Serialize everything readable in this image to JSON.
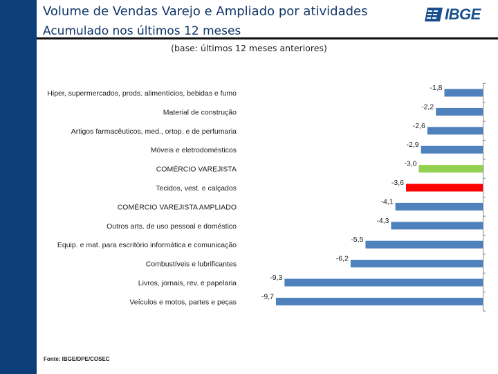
{
  "header": {
    "title": "Volume de Vendas Varejo e Ampliado por atividades",
    "subtitle": "Acumulado nos últimos 12 meses",
    "logo_text": "IBGE"
  },
  "chart_data": {
    "type": "bar",
    "orientation": "horizontal",
    "title": "(base: últimos 12 meses anteriores)",
    "categories": [
      "Hiper, supermercados, prods.  alimentícios, bebidas e fumo",
      "Material de construção",
      "Artigos farmacêuticos, med., ortop. e de perfumaria",
      "Móveis e eletrodomésticos",
      "COMÉRCIO VAREJISTA",
      "Tecidos, vest. e calçados",
      "COMÉRCIO VAREJISTA AMPLIADO",
      "Outros arts. de uso pessoal e doméstico",
      "Equip. e mat. para escritório informática e comunicação",
      "Combustíveis e lubrificantes",
      "Livros, jornais, rev. e papelaria",
      "Veículos e motos, partes e peças"
    ],
    "values": [
      -1.8,
      -2.2,
      -2.6,
      -2.9,
      -3.0,
      -3.6,
      -4.1,
      -4.3,
      -5.5,
      -6.2,
      -9.3,
      -9.7
    ],
    "value_labels": [
      "-1,8",
      "-2,2",
      "-2,6",
      "-2,9",
      "-3,0",
      "-3,6",
      "-4,1",
      "-4,3",
      "-5,5",
      "-6,2",
      "-9,3",
      "-9,7"
    ],
    "bar_colors": [
      "#4f81bd",
      "#4f81bd",
      "#4f81bd",
      "#4f81bd",
      "#92d050",
      "#ff0000",
      "#4f81bd",
      "#4f81bd",
      "#4f81bd",
      "#4f81bd",
      "#4f81bd",
      "#4f81bd"
    ],
    "xlim": [
      -9.7,
      0
    ],
    "xlabel": "",
    "ylabel": "",
    "grid": false,
    "legend": "none"
  },
  "footnote": "Fonte: IBGE/DPE/COSEC"
}
